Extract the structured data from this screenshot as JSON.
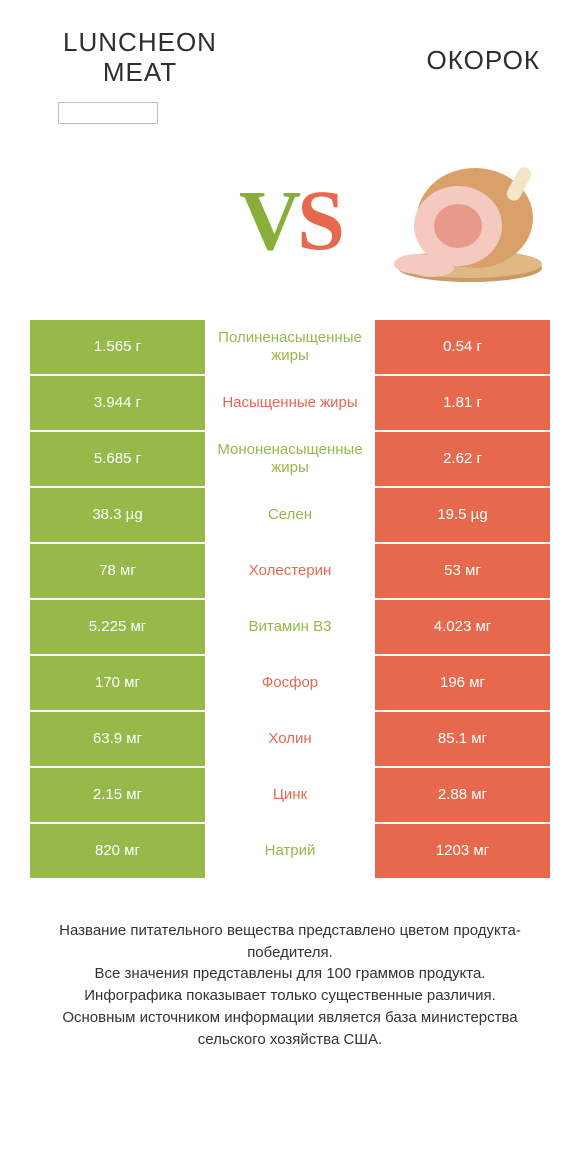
{
  "header": {
    "left_title_line1": "LUNCHEON",
    "left_title_line2": "MEAT",
    "right_title": "ОКОРОК",
    "input_value": ""
  },
  "vs": {
    "v": "V",
    "s": "S"
  },
  "colors": {
    "green": "#97b94a",
    "orange": "#e6694e",
    "white": "#ffffff",
    "text": "#333333"
  },
  "rows": [
    {
      "left": "1.565 г",
      "mid": "Полиненасыщенные жиры",
      "right": "0.54 г",
      "winner": "left"
    },
    {
      "left": "3.944 г",
      "mid": "Насыщенные жиры",
      "right": "1.81 г",
      "winner": "right"
    },
    {
      "left": "5.685 г",
      "mid": "Мононенасыщенные жиры",
      "right": "2.62 г",
      "winner": "left"
    },
    {
      "left": "38.3 µg",
      "mid": "Селен",
      "right": "19.5 µg",
      "winner": "left"
    },
    {
      "left": "78 мг",
      "mid": "Холестерин",
      "right": "53 мг",
      "winner": "right"
    },
    {
      "left": "5.225 мг",
      "mid": "Витамин B3",
      "right": "4.023 мг",
      "winner": "left"
    },
    {
      "left": "170 мг",
      "mid": "Фосфор",
      "right": "196 мг",
      "winner": "right"
    },
    {
      "left": "63.9 мг",
      "mid": "Холин",
      "right": "85.1 мг",
      "winner": "right"
    },
    {
      "left": "2.15 мг",
      "mid": "Цинк",
      "right": "2.88 мг",
      "winner": "right"
    },
    {
      "left": "820 мг",
      "mid": "Натрий",
      "right": "1203 мг",
      "winner": "left"
    }
  ],
  "footer": {
    "line1": "Название питательного вещества представлено цветом продукта-победителя.",
    "line2": "Все значения представлены для 100 граммов продукта.",
    "line3": "Инфографика показывает только существенные различия.",
    "line4": "Основным источником информации является база министерства сельского хозяйства США."
  },
  "ham_illustration": {
    "board_color": "#c79b63",
    "meat_outer": "#d9a06a",
    "meat_inner": "#f3c9c0",
    "meat_center": "#e89a8a",
    "bone_color": "#f2e5c8"
  }
}
